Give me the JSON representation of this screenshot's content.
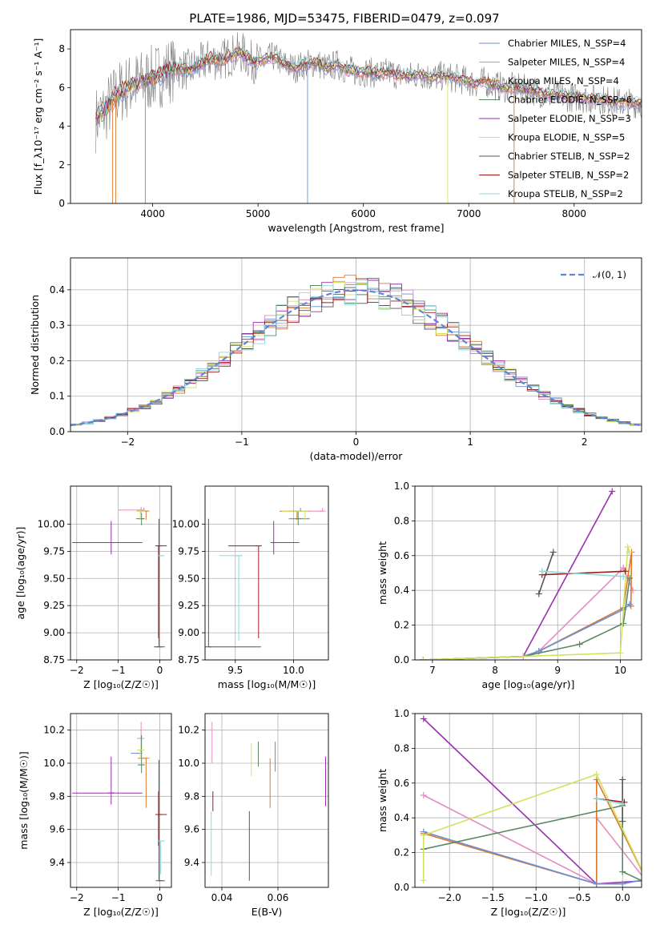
{
  "figure_title": "PLATE=1986, MJD=53475, FIBERID=0479, z=0.097",
  "colors": {
    "chabrier_miles": "#6c8ed6",
    "salpeter_miles": "#e58bc0",
    "kroupa_miles": "#d97a2e",
    "chabrier_elodie": "#5a8a62",
    "salpeter_elodie": "#9a2fb0",
    "kroupa_elodie": "#d2e25e",
    "chabrier_stelib": "#555555",
    "salpeter_stelib": "#a11a1a",
    "kroupa_stelib": "#8fd9dc",
    "normal": "#5b87d6",
    "spectrum_gray": "#7f7f7f"
  },
  "chart_data": [
    {
      "id": "spectrum",
      "type": "line",
      "title": "PLATE=1986, MJD=53475, FIBERID=0479, z=0.097",
      "xlabel": "wavelength [Angstrom, rest frame]",
      "ylabel": "Flux [f_λ10⁻¹⁷ erg cm⁻² s⁻¹ A⁻¹]",
      "xlim": [
        3220,
        8640
      ],
      "ylim": [
        0,
        9
      ],
      "xticks": [
        "4000",
        "5000",
        "6000",
        "7000",
        "8000"
      ],
      "yticks": [
        "0",
        "2",
        "4",
        "6",
        "8"
      ],
      "grid": false,
      "legend": "top-right",
      "observed_x": [
        3450,
        3550,
        3650,
        3750,
        3850,
        3950,
        4050,
        4150,
        4250,
        4350,
        4450,
        4550,
        4650,
        4750,
        4850,
        4950,
        5050,
        5150,
        5250,
        5350,
        5450,
        5550,
        5650,
        5750,
        5850,
        5950,
        6050,
        6150,
        6250,
        6350,
        6450,
        6550,
        6650,
        6750,
        6850,
        6950,
        7050,
        7150,
        7250,
        7350,
        7450,
        7550,
        7650,
        7750,
        7850,
        7950,
        8050,
        8150,
        8250,
        8350,
        8450
      ],
      "observed_y": [
        4.3,
        4.8,
        5.6,
        6.0,
        6.2,
        6.4,
        6.6,
        6.9,
        7.0,
        6.9,
        7.2,
        7.5,
        7.4,
        7.7,
        7.8,
        7.3,
        7.4,
        7.6,
        7.2,
        7.0,
        7.2,
        7.3,
        7.0,
        7.2,
        6.9,
        6.8,
        6.8,
        6.7,
        6.8,
        6.6,
        6.6,
        6.7,
        6.5,
        6.6,
        6.5,
        6.4,
        6.2,
        6.3,
        6.1,
        6.0,
        6.0,
        5.9,
        5.8,
        5.6,
        5.6,
        5.5,
        5.5,
        5.4,
        5.4,
        5.3,
        5.2
      ],
      "series": [
        {
          "name": "Chabrier MILES, N_SSP=4",
          "color": "#6c8ed6"
        },
        {
          "name": "Salpeter MILES, N_SSP=4",
          "color": "#e58bc0"
        },
        {
          "name": "Kroupa MILES, N_SSP=4",
          "color": "#d97a2e"
        },
        {
          "name": "Chabrier ELODIE, N_SSP=6",
          "color": "#5a8a62"
        },
        {
          "name": "Salpeter ELODIE, N_SSP=3",
          "color": "#9a2fb0"
        },
        {
          "name": "Kroupa ELODIE, N_SSP=5",
          "color": "#d2e25e"
        },
        {
          "name": "Chabrier STELIB, N_SSP=2",
          "color": "#555555"
        },
        {
          "name": "Salpeter STELIB, N_SSP=2",
          "color": "#a11a1a"
        },
        {
          "name": "Kroupa STELIB, N_SSP=2",
          "color": "#8fd9dc"
        }
      ]
    },
    {
      "id": "residuals",
      "type": "bar",
      "xlabel": "(data-model)/error",
      "ylabel": "Normed distribution",
      "xlim": [
        -2.5,
        2.5
      ],
      "ylim": [
        0,
        0.49
      ],
      "xticks": [
        "−2",
        "−1",
        "0",
        "1",
        "2"
      ],
      "yticks": [
        "0.0",
        "0.1",
        "0.2",
        "0.3",
        "0.4"
      ],
      "grid": true,
      "legend": "top-right",
      "legend_label": "𝒩(0, 1)",
      "bin_width": 0.1
    },
    {
      "id": "age_vs_Z",
      "type": "scatter",
      "xlabel": "Z [log₁₀(Z/Z☉)]",
      "ylabel": "age  [log₁₀(age/yr)]",
      "xlim": [
        -2.15,
        0.28
      ],
      "ylim": [
        8.75,
        10.35
      ],
      "xticks": [
        "−2",
        "−1",
        "0"
      ],
      "yticks": [
        "8.75",
        "9.00",
        "9.25",
        "9.50",
        "9.75",
        "10.00"
      ],
      "grid": true,
      "points": [
        {
          "x": -0.38,
          "y": 10.12,
          "xerr": [
            0.16,
            0.0
          ],
          "yerr": [
            0.0,
            0.03
          ],
          "color": "#6c8ed6"
        },
        {
          "x": -0.45,
          "y": 10.13,
          "xerr": [
            0.55,
            0.05
          ],
          "yerr": [
            0.04,
            0.03
          ],
          "color": "#e58bc0"
        },
        {
          "x": -0.33,
          "y": 10.12,
          "xerr": [
            0.02,
            0.02
          ],
          "yerr": [
            0.08,
            0.0
          ],
          "color": "#d97a2e"
        },
        {
          "x": -0.44,
          "y": 10.05,
          "xerr": [
            0.13,
            0.06
          ],
          "yerr": [
            0.06,
            0.05
          ],
          "color": "#5a8a62"
        },
        {
          "x": -1.17,
          "y": 9.83,
          "xerr": [
            0.94,
            0.75
          ],
          "yerr": [
            0.11,
            0.2
          ],
          "color": "#9a2fb0"
        },
        {
          "x": -0.47,
          "y": 10.12,
          "xerr": [
            0.1,
            0.12
          ],
          "yerr": [
            0.08,
            0.0
          ],
          "color": "#d2e25e"
        },
        {
          "x": -0.02,
          "y": 8.87,
          "xerr": [
            0.12,
            0.14
          ],
          "yerr": [
            0.0,
            1.18
          ],
          "color": "#555555"
        },
        {
          "x": -0.03,
          "y": 9.8,
          "xerr": [
            0.02,
            0.2
          ],
          "yerr": [
            0.85,
            0.0
          ],
          "color": "#a11a1a"
        },
        {
          "x": 0.02,
          "y": 9.71,
          "xerr": [
            0.04,
            0.09
          ],
          "yerr": [
            0.0,
            0.0
          ],
          "color": "#8fd9dc"
        }
      ]
    },
    {
      "id": "age_vs_mass",
      "type": "scatter",
      "xlabel": "mass [log₁₀(M/M☉)]",
      "ylabel": "",
      "xlim": [
        9.24,
        10.3
      ],
      "ylim": [
        8.75,
        10.35
      ],
      "xticks": [
        "9.5",
        "10.0"
      ],
      "yticks": [
        "8.75",
        "9.00",
        "9.25",
        "9.50",
        "9.75",
        "10.00"
      ],
      "grid": true,
      "points": [
        {
          "x": 10.06,
          "y": 10.12,
          "xerr": [
            0.1,
            0.08
          ],
          "yerr": [
            0.0,
            0.03
          ],
          "color": "#6c8ed6"
        },
        {
          "x": 10.25,
          "y": 10.12,
          "xerr": [
            0.2,
            0.0
          ],
          "yerr": [
            0.0,
            0.03
          ],
          "color": "#e58bc0"
        },
        {
          "x": 10.03,
          "y": 10.12,
          "xerr": [
            0.15,
            0.01
          ],
          "yerr": [
            0.08,
            0.0
          ],
          "color": "#d97a2e"
        },
        {
          "x": 10.04,
          "y": 10.05,
          "xerr": [
            0.08,
            0.1
          ],
          "yerr": [
            0.06,
            0.07
          ],
          "color": "#5a8a62"
        },
        {
          "x": 9.83,
          "y": 9.83,
          "xerr": [
            0.0,
            0.22
          ],
          "yerr": [
            0.11,
            0.2
          ],
          "color": "#9a2fb0"
        },
        {
          "x": 10.1,
          "y": 10.12,
          "xerr": [
            0.2,
            0.0
          ],
          "yerr": [
            0.08,
            0.0
          ],
          "color": "#d2e25e"
        },
        {
          "x": 9.27,
          "y": 8.87,
          "xerr": [
            0.0,
            0.45
          ],
          "yerr": [
            0.0,
            1.18
          ],
          "color": "#555555"
        },
        {
          "x": 9.7,
          "y": 9.8,
          "xerr": [
            0.26,
            0.0
          ],
          "yerr": [
            0.85,
            0.0
          ],
          "color": "#a11a1a"
        },
        {
          "x": 9.53,
          "y": 9.71,
          "xerr": [
            0.17,
            0.03
          ],
          "yerr": [
            0.78,
            0.0
          ],
          "color": "#8fd9dc"
        }
      ]
    },
    {
      "id": "weight_vs_age",
      "type": "line",
      "xlabel": "age  [log₁₀(age/yr)]",
      "ylabel": "mass weight",
      "xlim": [
        6.72,
        10.34
      ],
      "ylim": [
        0,
        1.0
      ],
      "xticks": [
        "7",
        "8",
        "9",
        "10"
      ],
      "yticks": [
        "0.0",
        "0.2",
        "0.4",
        "0.6",
        "0.8",
        "1.0"
      ],
      "grid": true,
      "series": [
        {
          "color": "#9a2fb0",
          "x": [
            6.85,
            8.45,
            9.87
          ],
          "y": [
            0.0,
            0.02,
            0.97
          ]
        },
        {
          "color": "#e58bc0",
          "x": [
            6.85,
            8.45,
            8.7,
            10.05,
            10.2
          ],
          "y": [
            0.0,
            0.02,
            0.05,
            0.53,
            0.4
          ]
        },
        {
          "color": "#d97a2e",
          "x": [
            6.85,
            8.45,
            8.7,
            10.05,
            10.18,
            10.17
          ],
          "y": [
            0.0,
            0.02,
            0.05,
            0.3,
            0.62,
            0.31
          ]
        },
        {
          "color": "#6c8ed6",
          "x": [
            8.45,
            8.7,
            10.05,
            10.15
          ],
          "y": [
            0.02,
            0.05,
            0.29,
            0.32
          ]
        },
        {
          "color": "#5a8a62",
          "x": [
            6.85,
            8.45,
            9.35,
            10.05,
            10.15
          ],
          "y": [
            0.0,
            0.02,
            0.09,
            0.21,
            0.47
          ]
        },
        {
          "color": "#d2e25e",
          "x": [
            6.85,
            8.45,
            10.0,
            10.12,
            10.14
          ],
          "y": [
            0.0,
            0.02,
            0.04,
            0.65,
            0.62
          ]
        },
        {
          "color": "#555555",
          "x": [
            8.7,
            8.93
          ],
          "y": [
            0.38,
            0.62
          ]
        },
        {
          "color": "#a11a1a",
          "x": [
            8.75,
            10.08
          ],
          "y": [
            0.49,
            0.51
          ]
        },
        {
          "color": "#8fd9dc",
          "x": [
            8.75,
            10.05
          ],
          "y": [
            0.51,
            0.48
          ]
        }
      ]
    },
    {
      "id": "mass_vs_Z",
      "type": "scatter",
      "xlabel": "Z [log₁₀(Z/Z☉)]",
      "ylabel": "mass [log₁₀(M/M☉)]",
      "xlim": [
        -2.15,
        0.28
      ],
      "ylim": [
        9.25,
        10.3
      ],
      "xticks": [
        "−2",
        "−1",
        "0"
      ],
      "yticks": [
        "9.4",
        "9.6",
        "9.8",
        "10.0",
        "10.2"
      ],
      "grid": true,
      "points": [
        {
          "x": -0.5,
          "y": 10.06,
          "xerr": [
            0.2,
            0.0
          ],
          "yerr": [
            0.0,
            0.0
          ],
          "color": "#6c8ed6"
        },
        {
          "x": -0.45,
          "y": 10.15,
          "xerr": [
            0.1,
            0.05
          ],
          "yerr": [
            0.08,
            0.1
          ],
          "color": "#e58bc0"
        },
        {
          "x": -0.33,
          "y": 10.03,
          "xerr": [
            0.2,
            0.0
          ],
          "yerr": [
            0.3,
            0.0
          ],
          "color": "#d97a2e"
        },
        {
          "x": -0.44,
          "y": 9.99,
          "xerr": [
            0.09,
            0.07
          ],
          "yerr": [
            0.05,
            0.18
          ],
          "color": "#5a8a62"
        },
        {
          "x": -1.17,
          "y": 9.82,
          "xerr": [
            0.94,
            0.75
          ],
          "yerr": [
            0.07,
            0.22
          ],
          "color": "#9a2fb0"
        },
        {
          "x": -0.47,
          "y": 10.08,
          "xerr": [
            0.08,
            0.1
          ],
          "yerr": [
            0.05,
            0.0
          ],
          "color": "#d2e25e"
        },
        {
          "x": -0.02,
          "y": 9.29,
          "xerr": [
            0.0,
            0.14
          ],
          "yerr": [
            0.0,
            0.73
          ],
          "color": "#555555"
        },
        {
          "x": -0.03,
          "y": 9.69,
          "xerr": [
            0.02,
            0.2
          ],
          "yerr": [
            0.19,
            0.14
          ],
          "color": "#a11a1a"
        },
        {
          "x": 0.02,
          "y": 9.53,
          "xerr": [
            0.04,
            0.09
          ],
          "yerr": [
            0.2,
            0.0
          ],
          "color": "#8fd9dc"
        }
      ]
    },
    {
      "id": "mass_vs_ebv",
      "type": "scatter",
      "xlabel": "E(B-V)",
      "ylabel": "",
      "xlim": [
        0.034,
        0.078
      ],
      "ylim": [
        9.25,
        10.3
      ],
      "xticks": [
        "0.04",
        "0.06"
      ],
      "yticks": [
        "9.4",
        "9.6",
        "9.8",
        "10.0",
        "10.2"
      ],
      "grid": true,
      "points": [
        {
          "x": 0.059,
          "y": 10.03,
          "yerr": [
            0.08,
            0.1
          ],
          "color": "#6c8ed6"
        },
        {
          "x": 0.0365,
          "y": 10.05,
          "yerr": [
            0.05,
            0.2
          ],
          "color": "#e58bc0"
        },
        {
          "x": 0.0572,
          "y": 9.88,
          "yerr": [
            0.15,
            0.15
          ],
          "color": "#d97a2e"
        },
        {
          "x": 0.053,
          "y": 10.05,
          "yerr": [
            0.07,
            0.08
          ],
          "color": "#5a8a62"
        },
        {
          "x": 0.077,
          "y": 9.89,
          "yerr": [
            0.15,
            0.15
          ],
          "color": "#9a2fb0"
        },
        {
          "x": 0.0505,
          "y": 10.02,
          "yerr": [
            0.1,
            0.1
          ],
          "color": "#d2e25e"
        },
        {
          "x": 0.0498,
          "y": 9.5,
          "yerr": [
            0.21,
            0.21
          ],
          "color": "#555555"
        },
        {
          "x": 0.0368,
          "y": 9.77,
          "yerr": [
            0.06,
            0.06
          ],
          "color": "#a11a1a"
        },
        {
          "x": 0.0362,
          "y": 9.6,
          "yerr": [
            0.28,
            0.11
          ],
          "color": "#8fd9dc"
        }
      ]
    },
    {
      "id": "weight_vs_Z",
      "type": "line",
      "xlabel": "Z [log₁₀(Z/Z☉)]",
      "ylabel": "mass weight",
      "xlim": [
        -2.4,
        0.22
      ],
      "ylim": [
        0,
        1.0
      ],
      "xticks": [
        "−2.0",
        "−1.5",
        "−1.0",
        "−0.5",
        "0.0"
      ],
      "yticks": [
        "0.0",
        "0.2",
        "0.4",
        "0.6",
        "0.8",
        "1.0"
      ],
      "grid": true,
      "series": [
        {
          "color": "#9a2fb0",
          "x": [
            -2.3,
            -0.3,
            0.3
          ],
          "y": [
            0.97,
            0.02,
            0.04
          ]
        },
        {
          "color": "#e58bc0",
          "x": [
            -2.3,
            -0.3,
            -0.3,
            0.3
          ],
          "y": [
            0.53,
            0.02,
            0.4,
            0.02
          ]
        },
        {
          "color": "#d97a2e",
          "x": [
            -2.3,
            -0.3,
            -0.3,
            0.3
          ],
          "y": [
            0.31,
            0.02,
            0.62,
            0.02
          ]
        },
        {
          "color": "#6c8ed6",
          "x": [
            -2.3,
            -0.3,
            0.0,
            0.3
          ],
          "y": [
            0.32,
            0.02,
            0.02,
            0.05
          ]
        },
        {
          "color": "#5a8a62",
          "x": [
            -2.3,
            0.0,
            0.0,
            0.3
          ],
          "y": [
            0.22,
            0.47,
            0.09,
            0.02
          ]
        },
        {
          "color": "#d2e25e",
          "x": [
            -2.3,
            -2.3,
            -0.3,
            0.3
          ],
          "y": [
            0.04,
            0.3,
            0.65,
            0.02
          ]
        },
        {
          "color": "#555555",
          "x": [
            0.0,
            0.0
          ],
          "y": [
            0.38,
            0.62
          ]
        },
        {
          "color": "#a11a1a",
          "x": [
            -0.3,
            0.02
          ],
          "y": [
            0.51,
            0.49
          ]
        },
        {
          "color": "#8fd9dc",
          "x": [
            -0.3,
            0.0
          ],
          "y": [
            0.51,
            0.48
          ]
        }
      ]
    }
  ]
}
